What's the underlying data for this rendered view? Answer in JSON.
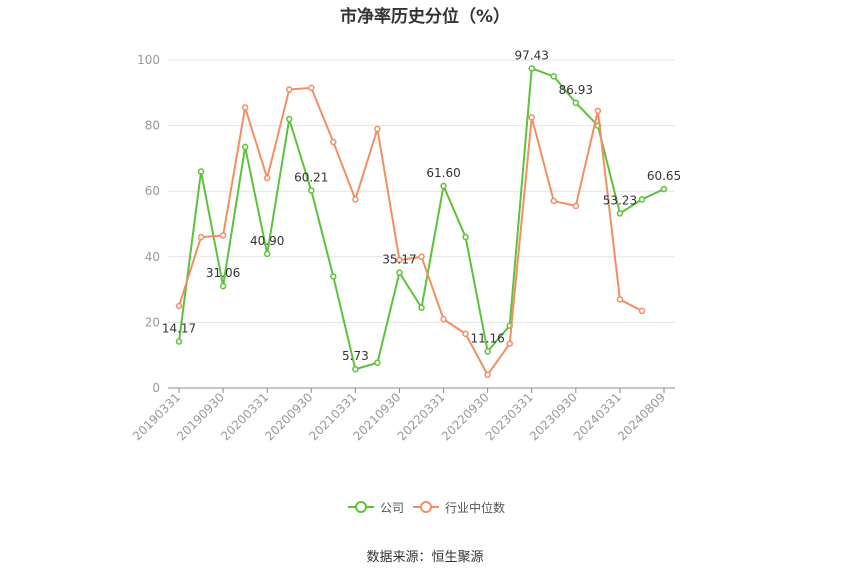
{
  "chart_data": {
    "type": "line",
    "title": "市净率历史分位（%）",
    "ylim": [
      0,
      100
    ],
    "yticks": [
      0,
      20,
      40,
      60,
      80,
      100
    ],
    "x": [
      "20190331",
      "20190630",
      "20190930",
      "20191231",
      "20200331",
      "20200630",
      "20200930",
      "20201231",
      "20210331",
      "20210630",
      "20210930",
      "20211231",
      "20220331",
      "20220630",
      "20220930",
      "20221231",
      "20230331",
      "20230630",
      "20230930",
      "20231231",
      "20240331",
      "20240630",
      "20240809"
    ],
    "xtick_labels": [
      "20190331",
      "20190930",
      "20200331",
      "20200930",
      "20210331",
      "20210930",
      "20220331",
      "20220930",
      "20230331",
      "20230930",
      "20240331",
      "20240809"
    ],
    "grid": true,
    "legend_position": "bottom",
    "series": [
      {
        "name": "公司",
        "color": "#5cc23a",
        "values": [
          14.17,
          66.0,
          31.06,
          73.5,
          40.9,
          82.0,
          60.21,
          34.0,
          5.73,
          7.7,
          35.17,
          24.5,
          61.6,
          46.0,
          11.16,
          19.0,
          97.43,
          95.0,
          86.93,
          80.0,
          53.23,
          57.5,
          60.65
        ],
        "labels": {
          "0": "14.17",
          "2": "31.06",
          "4": "40.90",
          "6": "60.21",
          "8": "5.73",
          "10": "35.17",
          "12": "61.60",
          "14": "11.16",
          "16": "97.43",
          "18": "86.93",
          "20": "53.23",
          "22": "60.65"
        }
      },
      {
        "name": "行业中位数",
        "color": "#f28e64",
        "values": [
          25.0,
          46.0,
          46.5,
          85.5,
          64.0,
          91.0,
          91.5,
          75.0,
          57.5,
          79.0,
          39.0,
          40.0,
          21.0,
          16.5,
          4.0,
          13.5,
          82.5,
          57.0,
          55.5,
          84.5,
          27.0,
          23.5,
          null
        ]
      }
    ]
  },
  "source_text": "数据来源：恒生聚源"
}
